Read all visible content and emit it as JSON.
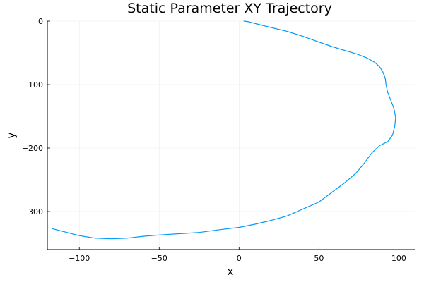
{
  "chart_data": {
    "type": "line",
    "title": "Static Parameter XY Trajectory",
    "xlabel": "x",
    "ylabel": "y",
    "xlim": [
      -120,
      110
    ],
    "ylim": [
      -360,
      0
    ],
    "xticks": [
      -100,
      -50,
      0,
      50,
      100
    ],
    "yticks": [
      0,
      -100,
      -200,
      -300
    ],
    "xtick_labels": [
      "−100",
      "−50",
      "0",
      "50",
      "100"
    ],
    "ytick_labels": [
      "0",
      "−100",
      "−200",
      "−300"
    ],
    "grid": true,
    "legend": false,
    "series": [
      {
        "color": "#009AFA",
        "x": [
          3,
          6,
          12,
          20,
          30,
          40,
          50,
          58,
          66,
          74,
          80,
          85,
          88,
          90,
          91.5,
          92,
          93,
          95,
          97,
          98,
          97.5,
          96,
          93,
          88,
          83,
          78,
          73,
          66,
          58,
          50,
          40,
          30,
          20,
          10,
          0,
          -10,
          -25,
          -50,
          -60,
          -70,
          -80,
          -90,
          -100,
          -117
        ],
        "y": [
          0,
          -1,
          -5,
          -10,
          -16,
          -24,
          -33,
          -40,
          -46,
          -52,
          -58,
          -65,
          -72,
          -80,
          -90,
          -100,
          -112,
          -125,
          -138,
          -152,
          -165,
          -180,
          -190,
          -196,
          -208,
          -225,
          -240,
          -255,
          -270,
          -285,
          -296,
          -307,
          -314,
          -320,
          -325,
          -328,
          -333,
          -337,
          -339,
          -342,
          -343,
          -342,
          -338,
          -327
        ]
      }
    ]
  }
}
